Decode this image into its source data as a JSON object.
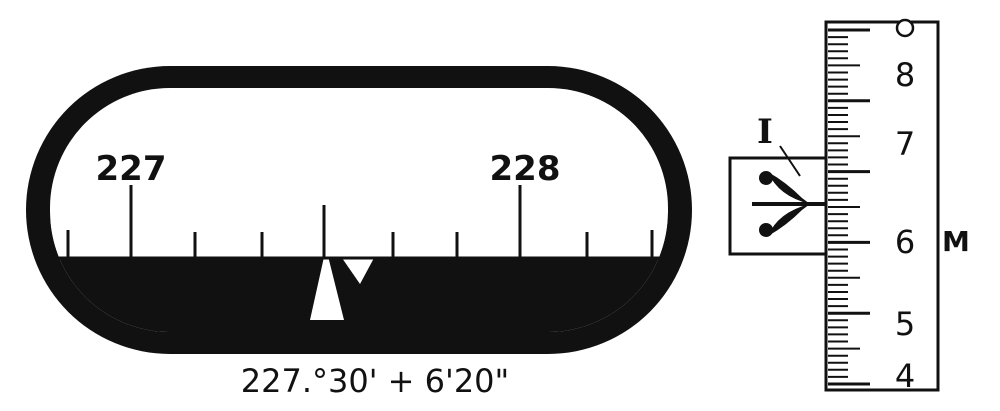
{
  "dial": {
    "label_left": "227",
    "label_right": "228",
    "reading": "227.°30' + 6'20\""
  },
  "vernier": {
    "marker_label": "I",
    "scale_labels": [
      "4",
      "5",
      "6",
      "7",
      "8"
    ],
    "unit_label": "M"
  },
  "colors": {
    "ink": "#111111",
    "paper": "#ffffff"
  }
}
